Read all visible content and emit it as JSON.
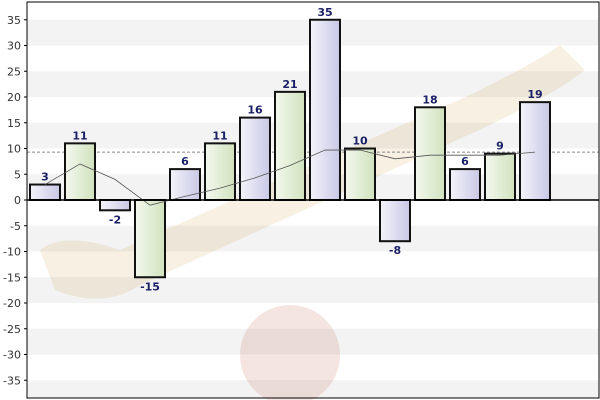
{
  "chart_data": {
    "type": "bar",
    "title": "",
    "xlabel": "",
    "ylabel": "",
    "ylim": [
      -40,
      40
    ],
    "yticks": [
      35,
      30,
      25,
      20,
      15,
      10,
      5,
      0,
      -5,
      -10,
      -15,
      -20,
      -25,
      -30,
      -35
    ],
    "ytick_labels": [
      "35",
      "30",
      "25",
      "20",
      "15",
      "10",
      "5",
      "0",
      "-5",
      "-10",
      "-15",
      "-20",
      "-25",
      "-30",
      "-35"
    ],
    "grid": true,
    "series": [
      {
        "values": [
          3,
          11,
          -2,
          -15,
          6,
          11,
          16,
          21,
          35,
          10,
          -8,
          18,
          6,
          9,
          19
        ],
        "value_labels": [
          "3",
          "11",
          "-2",
          "-15",
          "6",
          "11",
          "16",
          "21",
          "35",
          "10",
          "-8",
          "18",
          "6",
          "9",
          "19"
        ]
      }
    ],
    "moving_average": [
      3,
      7,
      4,
      -1,
      0.7,
      2.3,
      4.3,
      6.7,
      9.7,
      9.7,
      8.0,
      8.7,
      8.7,
      8.7,
      9.3
    ],
    "average_line": 9.3,
    "colors": {
      "bar_fill_a": "#d8d8f0",
      "bar_fill_b": "#deeed0",
      "bar_stroke": "#111111",
      "axis": "#000000",
      "grid_band": "#f3f3f3",
      "average": "#888888",
      "trend": "#555555",
      "data_label": "#1a1f66"
    }
  }
}
